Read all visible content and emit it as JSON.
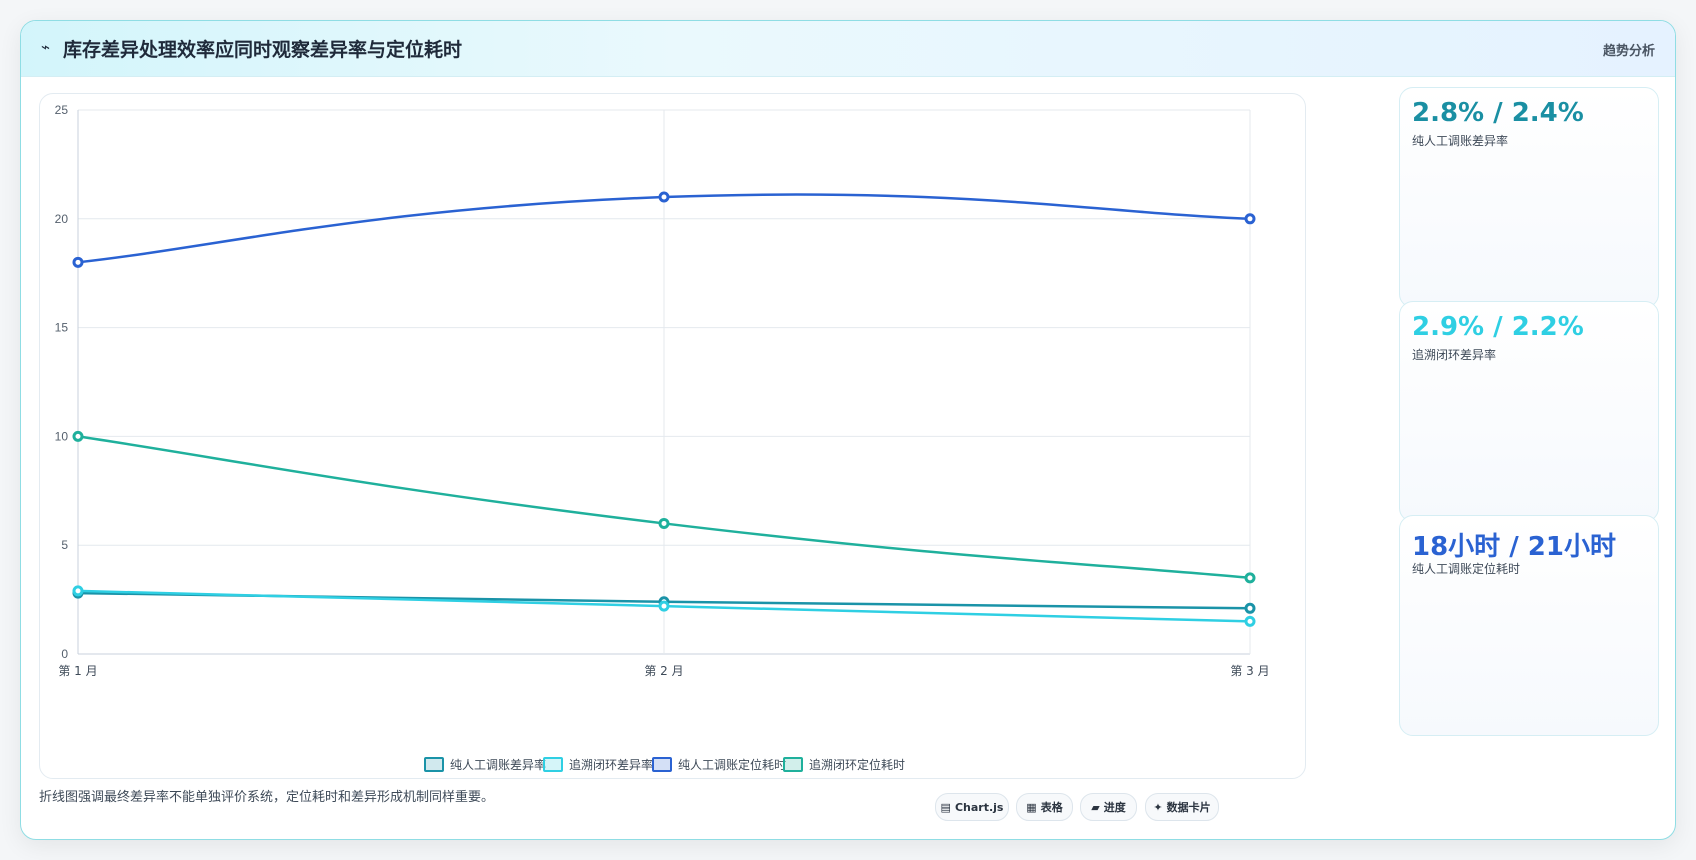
{
  "header": {
    "icon": "⌁",
    "title": "库存差异处理效率应同时观察差异率与定位耗时",
    "mode_label": "趋势分析"
  },
  "colors": {
    "s1": "#1a93a8",
    "s2": "#2fcfe3",
    "s3": "#2a62d2",
    "s4": "#1fb09c"
  },
  "chart_data": {
    "type": "line",
    "categories": [
      "第 1 月",
      "第 2 月",
      "第 3 月"
    ],
    "series": [
      {
        "name": "纯人工调账差异率",
        "values": [
          2.8,
          2.4,
          2.1
        ]
      },
      {
        "name": "追溯闭环差异率",
        "values": [
          2.9,
          2.2,
          1.5
        ]
      },
      {
        "name": "纯人工调账定位耗时",
        "values": [
          18,
          21,
          20
        ]
      },
      {
        "name": "追溯闭环定位耗时",
        "values": [
          10,
          6,
          3.5
        ]
      }
    ],
    "ylim": [
      0,
      25
    ],
    "yticks": [
      "0",
      "5",
      "10",
      "15",
      "20",
      "25"
    ],
    "grid": true,
    "legend": "bottom"
  },
  "kpis": [
    {
      "value": "2.8% / 2.4%",
      "label": "纯人工调账差异率",
      "color": "#1a8fa3"
    },
    {
      "value": "2.9% / 2.2%",
      "label": "追溯闭环差异率",
      "color": "#2fcfe3"
    },
    {
      "value": "18小时 / 21小时",
      "label": "纯人工调账定位耗时",
      "color": "#2a62d2"
    }
  ],
  "footnote": "折线图强调最终差异率不能单独评价系统，定位耗时和差异形成机制同样重要。",
  "chips": [
    {
      "icon": "▤",
      "label": "Chart.js"
    },
    {
      "icon": "▦",
      "label": "表格"
    },
    {
      "icon": "▰",
      "label": "进度"
    },
    {
      "icon": "✦",
      "label": "数据卡片"
    }
  ]
}
